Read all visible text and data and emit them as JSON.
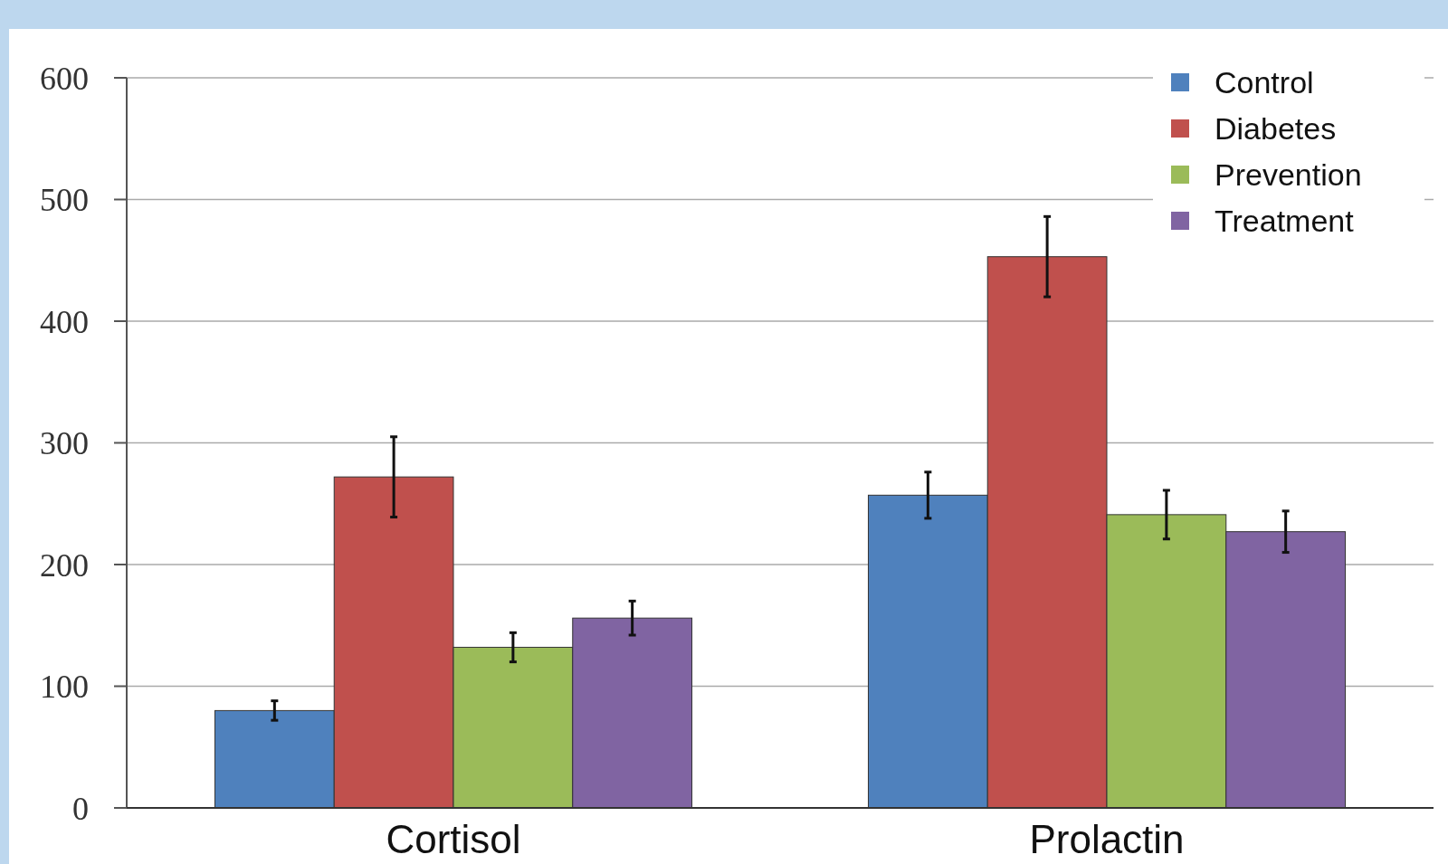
{
  "chart_data": {
    "type": "bar",
    "categories": [
      "Cortisol",
      "Prolactin"
    ],
    "series": [
      {
        "name": "Control",
        "color": "#4f81bd",
        "values": [
          80,
          257
        ],
        "errors": [
          8,
          19
        ]
      },
      {
        "name": "Diabetes",
        "color": "#c0504d",
        "values": [
          272,
          453
        ],
        "errors": [
          33,
          33
        ]
      },
      {
        "name": "Prevention",
        "color": "#9bbb59",
        "values": [
          132,
          241
        ],
        "errors": [
          12,
          20
        ]
      },
      {
        "name": "Treatment",
        "color": "#8064a2",
        "values": [
          156,
          227
        ],
        "errors": [
          14,
          17
        ]
      }
    ],
    "ylim": [
      0,
      600
    ],
    "yticks": [
      0,
      100,
      200,
      300,
      400,
      500,
      600
    ],
    "grid": "y",
    "legend": "top right"
  }
}
